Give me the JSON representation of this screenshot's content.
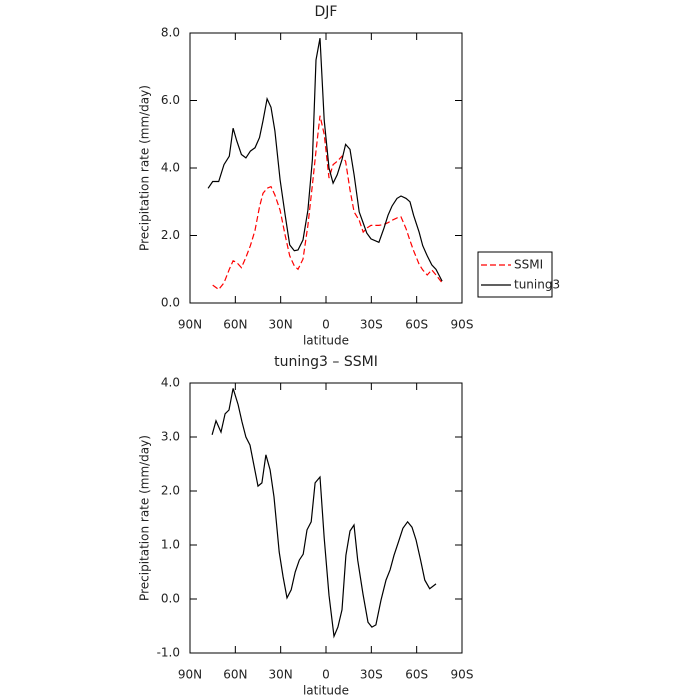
{
  "chart_data": [
    {
      "type": "line",
      "title": "DJF",
      "xlabel": "latitude",
      "ylabel": "Precipitation rate (mm/day)",
      "x": [
        78,
        75,
        71,
        67.5,
        64,
        61.5,
        59,
        56,
        53,
        50,
        47,
        44,
        41.7,
        39,
        36.4,
        33.8,
        30.4,
        27,
        24,
        21,
        18.5,
        15.2,
        12,
        9,
        6.6,
        4,
        1.2,
        -2,
        -4.7,
        -7.4,
        -10.6,
        -13,
        -15.9,
        -18.6,
        -22,
        -24.6,
        -27,
        -29.8,
        -35,
        -38.4,
        -41,
        -43.7,
        -47,
        -49.6,
        -53,
        -55.6,
        -58,
        -61.6,
        -64,
        -67,
        -70,
        -72.8,
        -76.8
      ],
      "series": [
        {
          "name": "SSMI",
          "color": "#ff0000",
          "linestyle": "dashed",
          "values": [
            null,
            0.53,
            0.4,
            0.6,
            1.0,
            1.25,
            1.2,
            1.05,
            1.35,
            1.7,
            2.15,
            2.85,
            3.25,
            3.4,
            3.45,
            3.2,
            2.75,
            2.0,
            1.4,
            1.1,
            1.0,
            1.3,
            2.3,
            3.5,
            4.5,
            5.55,
            5.0,
            3.7,
            4.1,
            4.2,
            4.35,
            4.2,
            3.35,
            2.7,
            2.45,
            2.1,
            2.22,
            2.3,
            2.3,
            2.33,
            2.38,
            2.45,
            2.52,
            2.55,
            2.2,
            1.85,
            1.55,
            1.15,
            0.98,
            0.83,
            0.98,
            0.83,
            0.6
          ]
        },
        {
          "name": "tuning3",
          "color": "#000000",
          "linestyle": "solid",
          "values": [
            3.4,
            3.6,
            3.6,
            4.1,
            4.35,
            5.18,
            4.8,
            4.4,
            4.3,
            4.5,
            4.6,
            4.9,
            5.4,
            6.05,
            5.8,
            5.1,
            3.65,
            2.6,
            1.72,
            1.55,
            1.57,
            1.87,
            2.75,
            4.25,
            7.2,
            7.85,
            5.42,
            4.0,
            3.55,
            3.8,
            4.25,
            4.7,
            4.55,
            3.8,
            2.7,
            2.37,
            2.07,
            1.9,
            1.8,
            2.22,
            2.6,
            2.87,
            3.1,
            3.17,
            3.1,
            3.0,
            2.6,
            2.1,
            1.7,
            1.4,
            1.13,
            1.0,
            0.65
          ]
        }
      ],
      "xlim": [
        90,
        -90
      ],
      "xticks": [
        {
          "value": 90,
          "label": "90N"
        },
        {
          "value": 60,
          "label": "60N"
        },
        {
          "value": 30,
          "label": "30N"
        },
        0,
        {
          "value": -30,
          "label": "30S"
        },
        {
          "value": -60,
          "label": "60S"
        },
        {
          "value": -90,
          "label": "90S"
        }
      ],
      "ylim": [
        0,
        8
      ],
      "yticks": [
        {
          "value": 0,
          "label": "0.0"
        },
        {
          "value": 2,
          "label": "2.0"
        },
        {
          "value": 4,
          "label": "4.0"
        },
        {
          "value": 6,
          "label": "6.0"
        },
        {
          "value": 8,
          "label": "8.0"
        }
      ],
      "legend": "right"
    },
    {
      "type": "line",
      "title": "tuning3 – SSMI",
      "xlabel": "latitude",
      "ylabel": "Precipitation rate (mm/day)",
      "x": [
        75.4,
        72.8,
        69.5,
        66.8,
        64.2,
        61.5,
        58.2,
        55.6,
        53,
        50.3,
        47.7,
        45,
        42.4,
        39.8,
        37,
        34.4,
        31,
        28.4,
        25.8,
        23,
        20.4,
        17.7,
        15.1,
        12.6,
        9.8,
        7.2,
        4,
        1.2,
        -2,
        -5.3,
        -7.9,
        -10.6,
        -13.2,
        -15.9,
        -18.5,
        -21,
        -24.5,
        -27.8,
        -30.4,
        -33,
        -36.4,
        -39.7,
        -42.4,
        -45,
        -48,
        -50.9,
        -54,
        -56.9,
        -59.6,
        -62.6,
        -65.4,
        -68.6,
        -72.8
      ],
      "series": [
        {
          "color": "#000000",
          "linestyle": "solid",
          "values": [
            3.04,
            3.3,
            3.09,
            3.43,
            3.5,
            3.9,
            3.6,
            3.28,
            3.0,
            2.85,
            2.48,
            2.09,
            2.15,
            2.67,
            2.39,
            1.89,
            0.87,
            0.41,
            0.02,
            0.17,
            0.5,
            0.72,
            0.83,
            1.28,
            1.43,
            2.15,
            2.26,
            1.13,
            0.07,
            -0.69,
            -0.52,
            -0.2,
            0.81,
            1.26,
            1.37,
            0.72,
            0.09,
            -0.43,
            -0.52,
            -0.48,
            -0.02,
            0.35,
            0.54,
            0.81,
            1.06,
            1.31,
            1.43,
            1.33,
            1.09,
            0.72,
            0.35,
            0.19,
            0.28
          ]
        }
      ],
      "xlim": [
        90,
        -90
      ],
      "xticks": [
        {
          "value": 90,
          "label": "90N"
        },
        {
          "value": 60,
          "label": "60N"
        },
        {
          "value": 30,
          "label": "30N"
        },
        0,
        {
          "value": -30,
          "label": "30S"
        },
        {
          "value": -60,
          "label": "60S"
        },
        {
          "value": -90,
          "label": "90S"
        }
      ],
      "ylim": [
        -1,
        4
      ],
      "yticks": [
        {
          "value": -1,
          "label": "-1.0"
        },
        {
          "value": 0,
          "label": "0.0"
        },
        {
          "value": 1,
          "label": "1.0"
        },
        {
          "value": 2,
          "label": "2.0"
        },
        {
          "value": 3,
          "label": "3.0"
        },
        {
          "value": 4,
          "label": "4.0"
        }
      ]
    }
  ]
}
